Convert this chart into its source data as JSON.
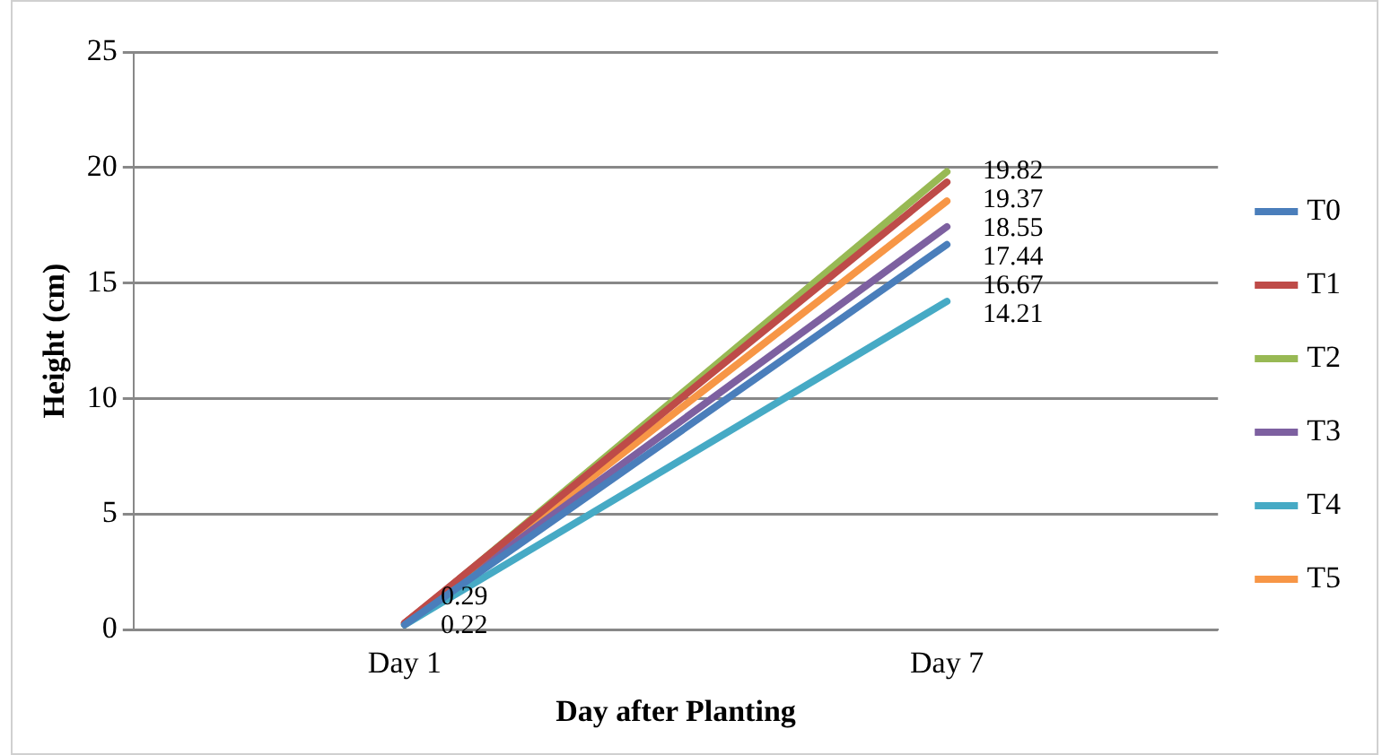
{
  "chart_data": {
    "type": "line",
    "xlabel": "Day after Planting",
    "ylabel": "Height (cm)",
    "categories": [
      "Day 1",
      "Day 7"
    ],
    "series": [
      {
        "name": "T0",
        "color": "#4a7ebb",
        "values": [
          0.22,
          16.67
        ],
        "value_labels": [
          "0.22",
          "16.67"
        ]
      },
      {
        "name": "T1",
        "color": "#be4b48",
        "values": [
          0.29,
          19.37
        ],
        "value_labels": [
          "0.29",
          "19.37"
        ]
      },
      {
        "name": "T2",
        "color": "#98b954",
        "values": [
          0.22,
          19.82
        ],
        "value_labels": [
          null,
          "19.82"
        ]
      },
      {
        "name": "T3",
        "color": "#7d60a0",
        "values": [
          0.29,
          17.44
        ],
        "value_labels": [
          null,
          "17.44"
        ]
      },
      {
        "name": "T4",
        "color": "#46aac5",
        "values": [
          0.22,
          14.21
        ],
        "value_labels": [
          null,
          "14.21"
        ]
      },
      {
        "name": "T5",
        "color": "#f79646",
        "values": [
          0.29,
          18.55
        ],
        "value_labels": [
          null,
          "18.55"
        ]
      }
    ],
    "ylim": [
      0,
      25
    ],
    "yticks": [
      0,
      5,
      10,
      15,
      20,
      25
    ],
    "grid": "y",
    "legend": "right",
    "marker": "none",
    "line_style": "solid"
  }
}
